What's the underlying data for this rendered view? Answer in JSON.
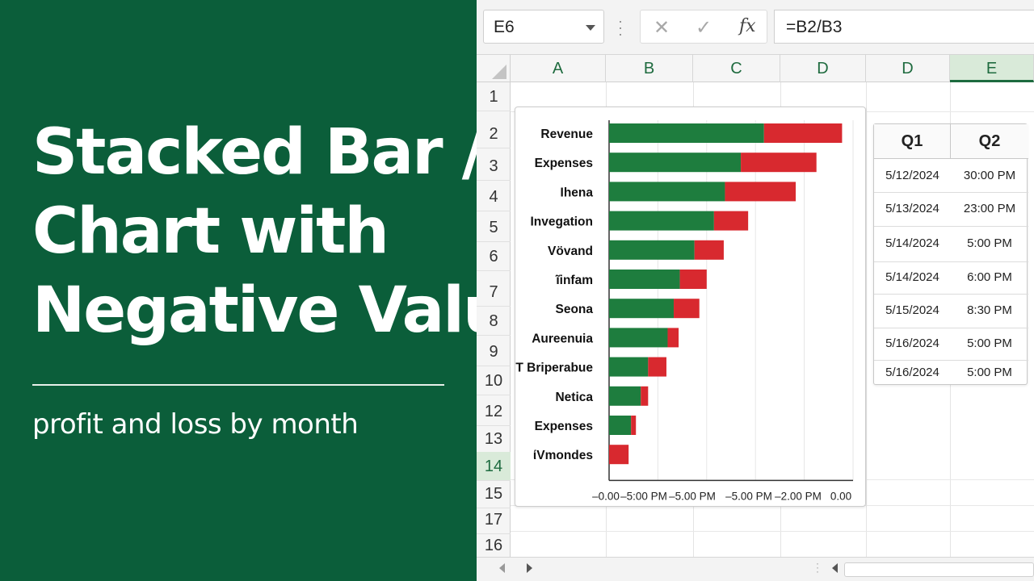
{
  "left": {
    "title_lines": [
      "Stacked Bar /",
      "Chart with",
      "Negative Values"
    ],
    "subtitle": "profit and loss by month"
  },
  "formula_bar": {
    "name_box": "E6",
    "cancel_icon": "close-icon",
    "enter_icon": "check-icon",
    "fx_label": "fx",
    "formula": "=B2/B3"
  },
  "columns": [
    "A",
    "B",
    "C",
    "D",
    "D",
    "E"
  ],
  "selected_column": "E",
  "rows": [
    "1",
    "2",
    "3",
    "4",
    "5",
    "6",
    "7",
    "8",
    "9",
    "10",
    "12",
    "13",
    "14",
    "15",
    "17",
    "16"
  ],
  "selected_row": "14",
  "chart_data": {
    "type": "bar",
    "orientation": "horizontal",
    "stacked": true,
    "categories": [
      "Revenue",
      "Expenses",
      "Ihena",
      "Invegation",
      "Vövand",
      "ĩinfam",
      "Seona",
      "Aureenuia",
      "T Briperabue",
      "Netica",
      "Expenses",
      "ίVmondes"
    ],
    "series": [
      {
        "color": "#1e7d3e",
        "values": [
          0.635,
          0.54,
          0.475,
          0.43,
          0.35,
          0.29,
          0.265,
          0.24,
          0.16,
          0.13,
          0.09,
          0.0
        ]
      },
      {
        "color": "#d8292f",
        "values": [
          0.32,
          0.31,
          0.29,
          0.14,
          0.12,
          0.11,
          0.105,
          0.045,
          0.075,
          0.03,
          0.02,
          0.08
        ]
      }
    ],
    "tick_labels": [
      "–0.00",
      "–5:00 PM",
      "–5.00 PM",
      "–5.00 PM",
      "–2.00 PM",
      "0.00"
    ],
    "grid": true
  },
  "table": {
    "headers": [
      "Q1",
      "Q2"
    ],
    "rows": [
      [
        "5/12/2024",
        "30:00 PM"
      ],
      [
        "5/13/2024",
        "23:00 PM"
      ],
      [
        "5/14/2024",
        "5:00 PM"
      ],
      [
        "5/14/2024",
        "6:00 PM"
      ],
      [
        "5/15/2024",
        "8:30 PM"
      ],
      [
        "5/16/2024",
        "5:00 PM"
      ],
      [
        "5/16/2024",
        "5:00 PM"
      ]
    ]
  }
}
